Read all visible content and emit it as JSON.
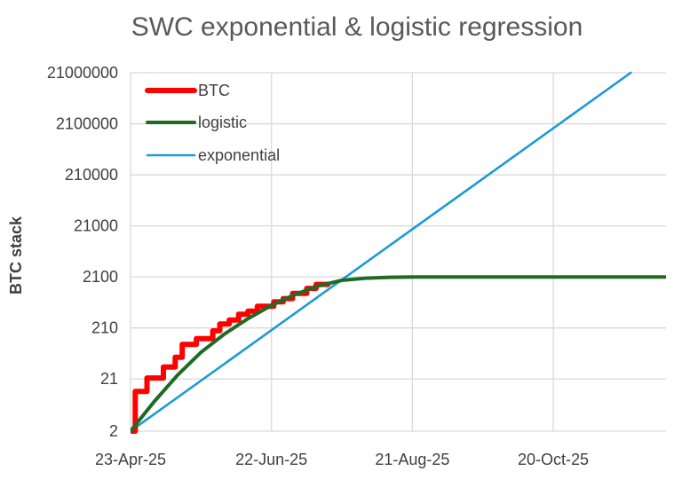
{
  "chart_data": {
    "type": "line",
    "title": "SWC exponential & logistic regression",
    "xlabel": "",
    "ylabel": "BTC stack",
    "y_scale": "log10",
    "ylim": [
      2,
      21000000
    ],
    "xlim": [
      "2025-04-23",
      "2025-12-07"
    ],
    "grid": true,
    "legend_position": "top-left",
    "x_ticks": [
      {
        "date": "2025-04-23",
        "label": "23-Apr-25"
      },
      {
        "date": "2025-06-22",
        "label": "22-Jun-25"
      },
      {
        "date": "2025-08-21",
        "label": "21-Aug-25"
      },
      {
        "date": "2025-10-20",
        "label": "20-Oct-25"
      }
    ],
    "y_ticks": [
      {
        "value": 2,
        "label": "2"
      },
      {
        "value": 21,
        "label": "21"
      },
      {
        "value": 210,
        "label": "210"
      },
      {
        "value": 2100,
        "label": "2100"
      },
      {
        "value": 21000,
        "label": "21000"
      },
      {
        "value": 210000,
        "label": "210000"
      },
      {
        "value": 2100000,
        "label": "2100000"
      },
      {
        "value": 21000000,
        "label": "21000000"
      }
    ],
    "series": [
      {
        "name": "BTC",
        "color": "#ff0000",
        "style": "step",
        "points": [
          [
            "2025-04-23",
            2
          ],
          [
            "2025-04-25",
            2
          ],
          [
            "2025-04-25",
            12
          ],
          [
            "2025-04-30",
            12
          ],
          [
            "2025-04-30",
            22
          ],
          [
            "2025-05-07",
            22
          ],
          [
            "2025-05-07",
            36
          ],
          [
            "2025-05-12",
            36
          ],
          [
            "2025-05-12",
            56
          ],
          [
            "2025-05-15",
            56
          ],
          [
            "2025-05-15",
            100
          ],
          [
            "2025-05-21",
            100
          ],
          [
            "2025-05-21",
            130
          ],
          [
            "2025-05-28",
            130
          ],
          [
            "2025-05-28",
            185
          ],
          [
            "2025-05-31",
            185
          ],
          [
            "2025-05-31",
            250
          ],
          [
            "2025-06-04",
            250
          ],
          [
            "2025-06-04",
            300
          ],
          [
            "2025-06-08",
            300
          ],
          [
            "2025-06-08",
            390
          ],
          [
            "2025-06-12",
            390
          ],
          [
            "2025-06-12",
            450
          ],
          [
            "2025-06-16",
            450
          ],
          [
            "2025-06-16",
            560
          ],
          [
            "2025-06-23",
            560
          ],
          [
            "2025-06-23",
            680
          ],
          [
            "2025-06-27",
            680
          ],
          [
            "2025-06-27",
            790
          ],
          [
            "2025-07-01",
            790
          ],
          [
            "2025-07-01",
            1000
          ],
          [
            "2025-07-07",
            1000
          ],
          [
            "2025-07-07",
            1250
          ],
          [
            "2025-07-11",
            1250
          ],
          [
            "2025-07-11",
            1500
          ],
          [
            "2025-07-16",
            1500
          ]
        ]
      },
      {
        "name": "logistic",
        "color": "#1e6b23",
        "style": "line",
        "points": [
          [
            "2025-04-23",
            2
          ],
          [
            "2025-05-03",
            7.5
          ],
          [
            "2025-05-13",
            25
          ],
          [
            "2025-05-23",
            70
          ],
          [
            "2025-06-02",
            160
          ],
          [
            "2025-06-12",
            320
          ],
          [
            "2025-06-22",
            580
          ],
          [
            "2025-07-02",
            950
          ],
          [
            "2025-07-12",
            1400
          ],
          [
            "2025-07-22",
            1800
          ],
          [
            "2025-08-01",
            1980
          ],
          [
            "2025-08-11",
            2060
          ],
          [
            "2025-08-21",
            2090
          ],
          [
            "2025-09-10",
            2100
          ],
          [
            "2025-10-20",
            2100
          ],
          [
            "2025-12-07",
            2100
          ]
        ]
      },
      {
        "name": "exponential",
        "color": "#1b9ad6",
        "style": "line",
        "points": [
          [
            "2025-04-23",
            2
          ],
          [
            "2025-11-22",
            21000000
          ]
        ]
      }
    ]
  }
}
